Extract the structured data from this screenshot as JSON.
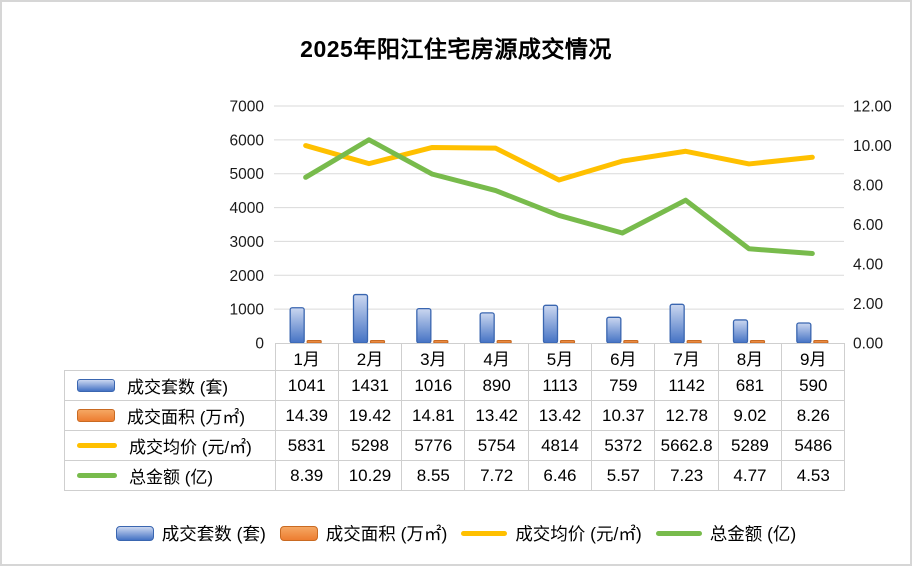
{
  "title": "2025年阳江住宅房源成交情况",
  "chart_data": {
    "type": "combo-bar-line",
    "categories": [
      "1月",
      "2月",
      "3月",
      "4月",
      "5月",
      "6月",
      "7月",
      "8月",
      "9月"
    ],
    "series": [
      {
        "id": "units",
        "name": "成交套数 (套)",
        "type": "bar",
        "axis": "left",
        "color": "#4472C4",
        "values": [
          1041,
          1431,
          1016,
          890,
          1113,
          759,
          1142,
          681,
          590
        ],
        "display": [
          "1041",
          "1431",
          "1016",
          "890",
          "1113",
          "759",
          "1142",
          "681",
          "590"
        ]
      },
      {
        "id": "area",
        "name": "成交面积 (万㎡)",
        "type": "bar",
        "axis": "left",
        "color": "#ED7D31",
        "values": [
          14.39,
          19.42,
          14.81,
          13.42,
          13.42,
          10.37,
          12.78,
          9.02,
          8.26
        ],
        "display": [
          "14.39",
          "19.42",
          "14.81",
          "13.42",
          "13.42",
          "10.37",
          "12.78",
          "9.02",
          "8.26"
        ]
      },
      {
        "id": "price",
        "name": "成交均价 (元/㎡)",
        "type": "line",
        "axis": "left",
        "color": "#FFC000",
        "values": [
          5831,
          5298,
          5776,
          5754,
          4814,
          5372,
          5662.8,
          5289,
          5486
        ],
        "display": [
          "5831",
          "5298",
          "5776",
          "5754",
          "4814",
          "5372",
          "5662.8",
          "5289",
          "5486"
        ]
      },
      {
        "id": "amount",
        "name": "总金额 (亿)",
        "type": "line",
        "axis": "right",
        "color": "#78BB4C",
        "values": [
          8.39,
          10.29,
          8.55,
          7.72,
          6.46,
          5.57,
          7.23,
          4.77,
          4.53
        ],
        "display": [
          "8.39",
          "10.29",
          "8.55",
          "7.72",
          "6.46",
          "5.57",
          "7.23",
          "4.77",
          "4.53"
        ]
      }
    ],
    "left_axis": {
      "min": 0,
      "max": 7000,
      "step": 1000,
      "ticks": [
        "0",
        "1000",
        "2000",
        "3000",
        "4000",
        "5000",
        "6000",
        "7000"
      ]
    },
    "right_axis": {
      "min": 0,
      "max": 12,
      "step": 2,
      "ticks": [
        "0.00",
        "2.00",
        "4.00",
        "6.00",
        "8.00",
        "10.00",
        "12.00"
      ]
    },
    "grid": true,
    "legend_position": "bottom",
    "data_table_shown": true
  },
  "colors": {
    "bar_blue": "#4472C4",
    "bar_blue_light": "#CBD7F0",
    "bar_blue_border": "#3A66B0",
    "bar_orange": "#ED7D31",
    "bar_orange_light": "#F5A763",
    "bar_orange_border": "#C96A22",
    "line_yellow": "#FFC000",
    "line_green": "#78BB4C",
    "grid": "#DADADA",
    "table_border": "#CFCFCF"
  }
}
